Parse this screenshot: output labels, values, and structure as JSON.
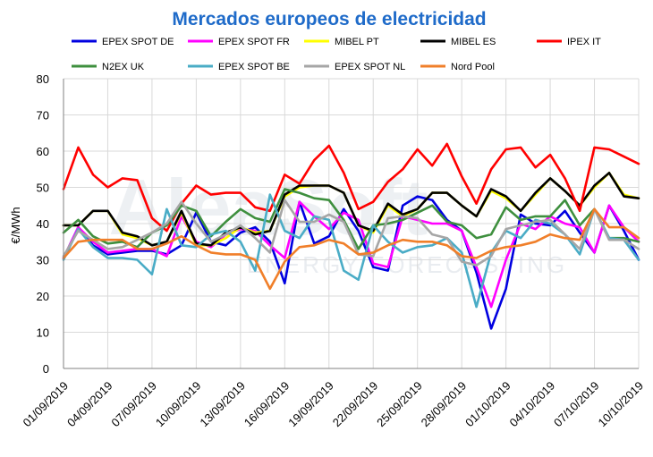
{
  "chart_data": {
    "type": "line",
    "title": "Mercados europeos de electricidad",
    "ylabel": "€/MWh",
    "xlabel": "",
    "ylim": [
      0,
      80
    ],
    "yticks": [
      0,
      10,
      20,
      30,
      40,
      50,
      60,
      70,
      80
    ],
    "grid": true,
    "legend_position": "top",
    "x": [
      "01/09/2019",
      "02/09/2019",
      "03/09/2019",
      "04/09/2019",
      "05/09/2019",
      "06/09/2019",
      "07/09/2019",
      "08/09/2019",
      "09/09/2019",
      "10/09/2019",
      "11/09/2019",
      "12/09/2019",
      "13/09/2019",
      "14/09/2019",
      "15/09/2019",
      "16/09/2019",
      "17/09/2019",
      "18/09/2019",
      "19/09/2019",
      "20/09/2019",
      "21/09/2019",
      "22/09/2019",
      "23/09/2019",
      "24/09/2019",
      "25/09/2019",
      "26/09/2019",
      "27/09/2019",
      "28/09/2019",
      "29/09/2019",
      "30/09/2019",
      "01/10/2019",
      "02/10/2019",
      "03/10/2019",
      "04/10/2019",
      "05/10/2019",
      "06/10/2019",
      "07/10/2019",
      "08/10/2019",
      "09/10/2019",
      "10/10/2019"
    ],
    "x_tick_labels": [
      "01/09/2019",
      "04/09/2019",
      "07/09/2019",
      "10/09/2019",
      "13/09/2019",
      "16/09/2019",
      "19/09/2019",
      "22/09/2019",
      "25/09/2019",
      "28/09/2019",
      "01/10/2019",
      "04/10/2019",
      "07/10/2019",
      "10/10/2019"
    ],
    "watermark": "AleaSoft ENERGY FORECASTING",
    "series": [
      {
        "name": "EPEX SPOT DE",
        "color": "#0000e0",
        "values": [
          30.5,
          39,
          34,
          31.5,
          32,
          32.5,
          32.5,
          31.5,
          34,
          43,
          35,
          34,
          37.5,
          39,
          35,
          23.5,
          46,
          34.5,
          36.5,
          44,
          38,
          28,
          27,
          45,
          47.5,
          46.5,
          41,
          38,
          26.5,
          11,
          22,
          42.5,
          40,
          39.5,
          43.5,
          37.5,
          32,
          45,
          38,
          30
        ]
      },
      {
        "name": "EPEX SPOT FR",
        "color": "#ff00ff",
        "values": [
          30.5,
          39,
          35,
          32,
          32.5,
          33,
          33,
          31,
          42,
          35,
          33.5,
          37,
          38.5,
          38,
          34,
          30.5,
          46,
          42,
          38.5,
          43,
          41,
          29,
          28,
          42,
          41,
          40,
          40,
          38,
          28,
          17,
          30,
          40,
          38.5,
          42,
          40,
          39,
          32,
          45,
          39,
          35
        ]
      },
      {
        "name": "MIBEL PT",
        "color": "#ffff00",
        "values": [
          39.5,
          39.5,
          43.5,
          43.5,
          37,
          36,
          34,
          35,
          43,
          34,
          34,
          36,
          39,
          37.5,
          38,
          47.5,
          50,
          50.5,
          50.5,
          48.5,
          39.5,
          37.5,
          45,
          42,
          44,
          48.5,
          48.5,
          45,
          42,
          49,
          47,
          43.5,
          48,
          52.5,
          49,
          45,
          50,
          54,
          48,
          47
        ]
      },
      {
        "name": "MIBEL ES",
        "color": "#000000",
        "values": [
          39.5,
          39.5,
          43.5,
          43.5,
          37.5,
          36.5,
          34,
          35,
          43.5,
          34.5,
          34,
          37.5,
          39,
          37,
          38,
          48,
          50.5,
          50.5,
          50.5,
          48.5,
          39.5,
          38,
          45.5,
          42.5,
          44,
          48.5,
          48.5,
          45,
          42,
          49.5,
          47.5,
          43.5,
          48.5,
          52.5,
          49,
          45,
          50.5,
          54,
          47.5,
          47
        ]
      },
      {
        "name": "IPEX IT",
        "color": "#ff0000",
        "values": [
          49.5,
          61,
          53.5,
          50,
          52.5,
          52,
          41.5,
          38,
          45.5,
          50.5,
          48,
          48.5,
          48.5,
          44.5,
          43.5,
          53.5,
          51,
          57.5,
          61.5,
          54,
          44,
          46,
          51.5,
          55,
          60.5,
          56,
          62,
          53,
          45.5,
          55,
          60.5,
          61,
          55.5,
          59,
          52.5,
          43.5,
          61,
          60.5,
          58.5,
          56.5
        ]
      },
      {
        "name": "N2EX UK",
        "color": "#3e8f3e",
        "values": [
          37.5,
          41,
          36.5,
          34.5,
          35,
          33.5,
          37.5,
          39.5,
          45,
          43.5,
          36.5,
          40.5,
          44,
          41.5,
          40.5,
          49.5,
          48.5,
          47,
          46.5,
          41,
          33,
          39.5,
          40,
          41,
          43,
          45,
          40.5,
          39.5,
          36,
          37,
          44.5,
          41,
          42,
          42,
          46.5,
          39.5,
          44,
          36,
          36,
          35
        ]
      },
      {
        "name": "EPEX SPOT BE",
        "color": "#4aacc6",
        "values": [
          30,
          38.5,
          33.5,
          30.5,
          30.5,
          30,
          26,
          44,
          34,
          33.5,
          37,
          38,
          35,
          27,
          48,
          38,
          36,
          42,
          41,
          27,
          24.5,
          39.5,
          35,
          32,
          33.5,
          34,
          36,
          32,
          17,
          32,
          38,
          36,
          41,
          40,
          37,
          31.5,
          44,
          36,
          35.5,
          30
        ]
      },
      {
        "name": "EPEX SPOT NL",
        "color": "#a6a6a6",
        "values": [
          31,
          38,
          35.5,
          33,
          33.5,
          35.5,
          37.5,
          40,
          46,
          40,
          35,
          37,
          39.5,
          36,
          32,
          46.5,
          40.5,
          40.5,
          42.5,
          40.5,
          31.5,
          31,
          41.5,
          42,
          41.5,
          37,
          36,
          29.5,
          28.5,
          31,
          38.5,
          39.5,
          40.5,
          41,
          37,
          33,
          44,
          35.5,
          35.5,
          33
        ]
      },
      {
        "name": "Nord Pool",
        "color": "#f07f2a",
        "values": [
          30.5,
          35,
          35.5,
          35.5,
          35.5,
          33,
          33,
          34.5,
          36.5,
          34,
          32,
          31.5,
          31.5,
          30,
          22,
          29.5,
          33.5,
          34,
          35.5,
          34.5,
          31.5,
          32,
          34,
          35.5,
          35,
          35,
          34,
          31,
          30.5,
          32.5,
          33.5,
          34,
          35,
          37,
          36,
          35.5,
          44,
          39,
          39,
          36
        ]
      }
    ]
  }
}
